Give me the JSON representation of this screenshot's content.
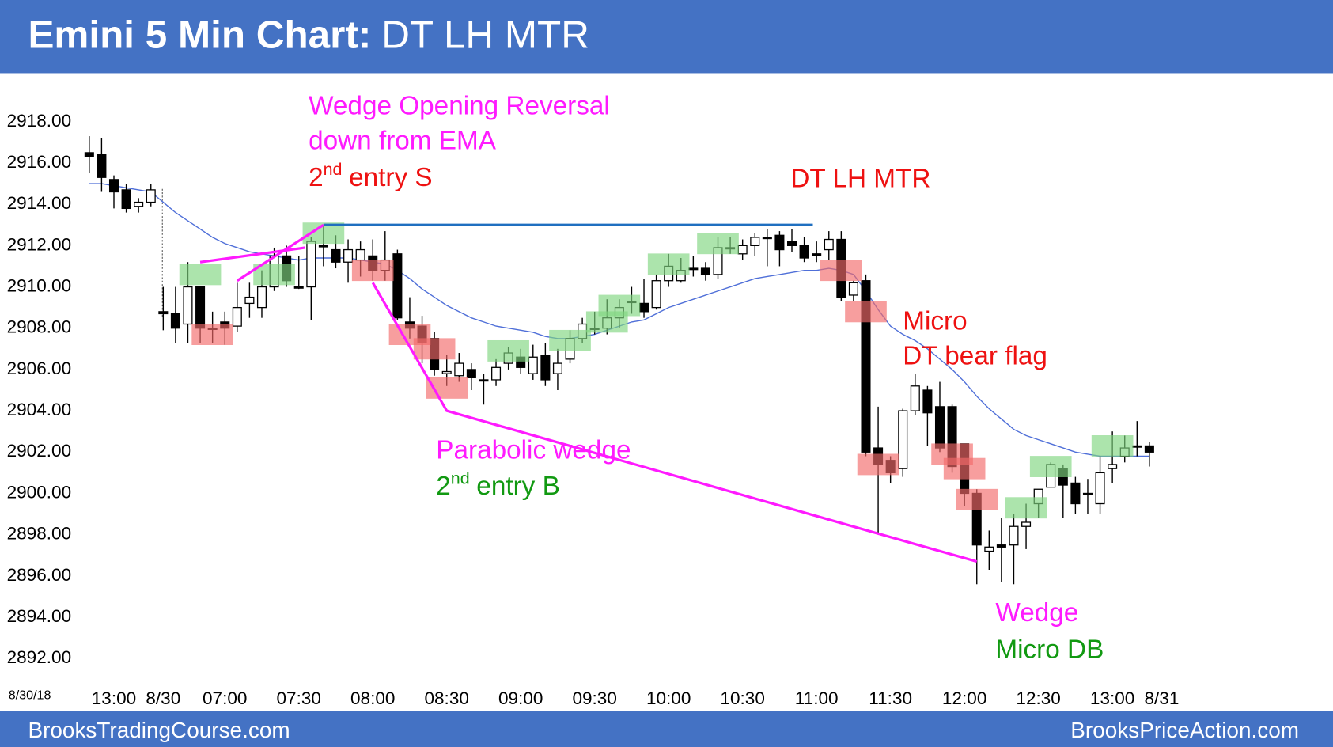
{
  "title_bold": "Emini 5 Min Chart:",
  "title_rest": "DT LH MTR",
  "footer_left": "BrooksTradingCourse.com",
  "footer_right": "BrooksPriceAction.com",
  "date_label": "8/30/18",
  "annotations": {
    "wedge_opening": [
      "Wedge Opening Reversal",
      "down from EMA"
    ],
    "entry_s": [
      "2",
      "nd",
      "entry S"
    ],
    "dt_lh_mtr": "DT LH MTR",
    "micro": [
      "Micro",
      "DT bear flag"
    ],
    "parabolic": "Parabolic wedge",
    "entry_b": [
      "2",
      "nd",
      "entry B"
    ],
    "wedge": "Wedge",
    "micro_db": "Micro DB"
  },
  "chart_data": {
    "type": "candlestick",
    "categories": [
      null,
      null,
      "13:00",
      null,
      null,
      null,
      "8/30",
      null,
      null,
      null,
      null,
      "07:00",
      null,
      null,
      null,
      null,
      null,
      "07:30",
      null,
      null,
      null,
      null,
      null,
      "08:00",
      null,
      null,
      null,
      null,
      null,
      "08:30",
      null,
      null,
      null,
      null,
      null,
      "09:00",
      null,
      null,
      null,
      null,
      null,
      "09:30",
      null,
      null,
      null,
      null,
      null,
      "10:00",
      null,
      null,
      null,
      null,
      null,
      "10:30",
      null,
      null,
      null,
      null,
      null,
      "11:00",
      null,
      null,
      null,
      null,
      null,
      "11:30",
      null,
      null,
      null,
      null,
      null,
      "12:00",
      null,
      null,
      null,
      null,
      null,
      "12:30",
      null,
      null,
      null,
      null,
      null,
      "13:00",
      null,
      null,
      null,
      "8/31"
    ],
    "open": [
      2916.5,
      2916.4,
      2915.2,
      2914.7,
      2913.9,
      2914.1,
      2908.8,
      2908.7,
      2908.2,
      2910.0,
      2908.0,
      2908.3,
      2908.1,
      2909.2,
      2909.0,
      2910.0,
      2911.5,
      2910.0,
      2910.0,
      2912.0,
      2911.8,
      2911.2,
      2911.3,
      2911.5,
      2910.8,
      2911.6,
      2908.3,
      2908.1,
      2907.5,
      2905.8,
      2905.7,
      2906.0,
      2905.5,
      2905.5,
      2906.3,
      2906.6,
      2905.8,
      2906.7,
      2905.8,
      2906.5,
      2907.5,
      2908.0,
      2908.0,
      2908.5,
      2909.3,
      2909.2,
      2909.0,
      2910.3,
      2910.3,
      2910.9,
      2910.9,
      2910.6,
      2911.9,
      2911.6,
      2912.0,
      2912.4,
      2912.5,
      2912.2,
      2912.0,
      2911.6,
      2911.8,
      2912.3,
      2909.6,
      2910.3,
      2902.2,
      2901.6,
      2901.2,
      2904.0,
      2905.0,
      2904.2,
      2904.2,
      2902.4,
      2900.0,
      2897.2,
      2897.5,
      2897.5,
      2898.4,
      2899.5,
      2900.3,
      2901.2,
      2900.5,
      2900.0,
      2899.5,
      2901.2,
      2901.8,
      2902.3,
      2902.3,
      null
    ],
    "high": [
      2917.3,
      2917.2,
      2915.4,
      2915.0,
      2914.3,
      2915.0,
      2910.0,
      2910.0,
      2911.2,
      2910.0,
      2908.8,
      2908.8,
      2910.2,
      2910.2,
      2910.8,
      2911.9,
      2912.0,
      2911.5,
      2912.4,
      2913.0,
      2912.5,
      2912.3,
      2912.2,
      2912.3,
      2912.7,
      2911.8,
      2909.5,
      2908.6,
      2907.8,
      2906.7,
      2906.8,
      2906.3,
      2905.8,
      2906.5,
      2907.1,
      2907.0,
      2907.2,
      2907.3,
      2907.0,
      2907.9,
      2908.5,
      2908.8,
      2909.4,
      2909.4,
      2910.0,
      2910.4,
      2910.6,
      2911.6,
      2911.4,
      2911.5,
      2911.2,
      2912.4,
      2912.4,
      2912.3,
      2912.6,
      2912.8,
      2912.7,
      2912.8,
      2912.4,
      2912.2,
      2912.7,
      2912.7,
      2910.3,
      2910.6,
      2904.2,
      2901.8,
      2904.1,
      2905.8,
      2905.2,
      2905.4,
      2904.3,
      2902.4,
      2900.2,
      2898.2,
      2898.8,
      2899.0,
      2899.5,
      2900.2,
      2901.5,
      2901.4,
      2900.8,
      2900.7,
      2901.8,
      2903.0,
      2902.8,
      2903.5,
      2902.5,
      null
    ],
    "low": [
      2915.5,
      2914.6,
      2913.8,
      2913.6,
      2913.6,
      2913.9,
      2907.9,
      2907.3,
      2907.3,
      2907.3,
      2907.3,
      2907.2,
      2907.8,
      2908.5,
      2908.5,
      2909.8,
      2910.0,
      2909.9,
      2908.4,
      2911.0,
      2910.9,
      2910.2,
      2910.5,
      2910.3,
      2910.3,
      2908.4,
      2907.5,
      2906.3,
      2905.7,
      2905.2,
      2905.4,
      2905.0,
      2904.3,
      2905.2,
      2906.0,
      2905.8,
      2905.5,
      2905.2,
      2905.0,
      2906.3,
      2907.3,
      2907.7,
      2907.7,
      2908.0,
      2908.7,
      2908.5,
      2908.9,
      2910.0,
      2910.2,
      2910.5,
      2910.3,
      2910.4,
      2911.6,
      2911.3,
      2911.5,
      2911.0,
      2911.0,
      2911.7,
      2911.2,
      2911.2,
      2911.3,
      2909.3,
      2909.3,
      2901.8,
      2898.1,
      2900.5,
      2900.8,
      2903.8,
      2902.3,
      2902.0,
      2901.0,
      2899.4,
      2895.6,
      2896.3,
      2895.7,
      2895.6,
      2897.3,
      2898.8,
      2900.3,
      2898.8,
      2899.0,
      2899.0,
      2899.0,
      2900.5,
      2901.5,
      2901.8,
      2901.3,
      null
    ],
    "close": [
      2916.3,
      2915.3,
      2914.6,
      2913.8,
      2914.1,
      2914.7,
      2908.7,
      2908.0,
      2910.0,
      2908.0,
      2908.0,
      2908.0,
      2909.0,
      2909.5,
      2910.0,
      2911.5,
      2910.3,
      2910.0,
      2912.2,
      2912.0,
      2911.2,
      2911.8,
      2911.8,
      2910.8,
      2911.3,
      2908.5,
      2908.0,
      2907.3,
      2906.0,
      2905.9,
      2906.3,
      2905.6,
      2905.5,
      2906.1,
      2906.8,
      2906.1,
      2906.6,
      2905.5,
      2906.3,
      2907.5,
      2908.2,
      2908.0,
      2908.5,
      2909.0,
      2909.3,
      2908.8,
      2910.3,
      2911.0,
      2910.8,
      2910.9,
      2910.6,
      2911.9,
      2911.9,
      2912.0,
      2912.4,
      2912.4,
      2911.8,
      2912.0,
      2911.4,
      2911.6,
      2912.3,
      2909.5,
      2910.2,
      2902.0,
      2901.4,
      2901.0,
      2904.0,
      2905.2,
      2903.9,
      2902.2,
      2901.3,
      2900.0,
      2897.5,
      2897.4,
      2897.4,
      2898.4,
      2898.6,
      2900.2,
      2901.4,
      2900.4,
      2899.5,
      2900.0,
      2901.0,
      2901.4,
      2902.2,
      2902.3,
      2902.0,
      null
    ],
    "ema": {
      "color": "#4f6fd8",
      "values": [
        2915.0,
        2915.0,
        2914.9,
        2914.8,
        2914.7,
        2914.6,
        2914.1,
        2913.6,
        2913.2,
        2912.8,
        2912.4,
        2912.1,
        2911.9,
        2911.7,
        2911.6,
        2911.5,
        2911.4,
        2911.3,
        2911.4,
        2911.4,
        2911.4,
        2911.4,
        2911.3,
        2911.2,
        2911.1,
        2910.8,
        2910.4,
        2909.9,
        2909.5,
        2909.1,
        2908.8,
        2908.5,
        2908.3,
        2908.1,
        2908.0,
        2907.9,
        2907.8,
        2907.6,
        2907.5,
        2907.5,
        2907.6,
        2907.7,
        2907.9,
        2908.1,
        2908.3,
        2908.4,
        2908.7,
        2909.0,
        2909.2,
        2909.4,
        2909.6,
        2909.8,
        2910.0,
        2910.2,
        2910.4,
        2910.5,
        2910.6,
        2910.7,
        2910.8,
        2910.8,
        2910.9,
        2910.8,
        2910.6,
        2909.8,
        2908.9,
        2908.1,
        2907.7,
        2907.4,
        2907.0,
        2906.5,
        2906.0,
        2905.4,
        2904.7,
        2904.1,
        2903.6,
        2903.1,
        2902.8,
        2902.6,
        2902.4,
        2902.2,
        2902.0,
        2901.9,
        2901.8,
        2901.8,
        2901.8,
        2901.8,
        2901.8,
        null
      ]
    },
    "buy_boxes": {
      "color": "#7fd67f",
      "items": [
        {
          "bar": 9,
          "price": 2910.6
        },
        {
          "bar": 15,
          "price": 2910.6
        },
        {
          "bar": 19,
          "price": 2912.6
        },
        {
          "bar": 34,
          "price": 2906.9
        },
        {
          "bar": 39,
          "price": 2907.4
        },
        {
          "bar": 42,
          "price": 2908.3
        },
        {
          "bar": 43,
          "price": 2909.1
        },
        {
          "bar": 47,
          "price": 2911.1
        },
        {
          "bar": 51,
          "price": 2912.1
        },
        {
          "bar": 76,
          "price": 2899.3
        },
        {
          "bar": 78,
          "price": 2901.3
        },
        {
          "bar": 83,
          "price": 2902.3
        }
      ]
    },
    "sell_boxes": {
      "color": "#f26a6a",
      "items": [
        {
          "bar": 10,
          "price": 2907.7
        },
        {
          "bar": 23,
          "price": 2910.8
        },
        {
          "bar": 26,
          "price": 2907.7
        },
        {
          "bar": 28,
          "price": 2907.0
        },
        {
          "bar": 29,
          "price": 2905.1
        },
        {
          "bar": 61,
          "price": 2910.8
        },
        {
          "bar": 63,
          "price": 2908.8
        },
        {
          "bar": 64,
          "price": 2901.4
        },
        {
          "bar": 70,
          "price": 2901.9
        },
        {
          "bar": 71,
          "price": 2901.2
        },
        {
          "bar": 72,
          "price": 2899.7
        }
      ]
    },
    "lines": [
      {
        "color": "#ff1aff",
        "points": [
          [
            9,
            2911.2
          ],
          [
            17.5,
            2911.9
          ]
        ]
      },
      {
        "color": "#ff1aff",
        "points": [
          [
            12,
            2910.3
          ],
          [
            19,
            2913.0
          ]
        ]
      },
      {
        "color": "#1f6fc0",
        "points": [
          [
            19,
            2913.0
          ],
          [
            58.7,
            2913.0
          ]
        ]
      },
      {
        "color": "#ff1aff",
        "points": [
          [
            23,
            2910.2
          ],
          [
            29,
            2904.0
          ],
          [
            64,
            2898.05
          ],
          [
            72,
            2896.7
          ]
        ]
      }
    ],
    "ylim": [
      2891,
      2920
    ],
    "yticks": [
      {
        "value": 2892,
        "label": "2892.00"
      },
      {
        "value": 2894,
        "label": "2894.00"
      },
      {
        "value": 2896,
        "label": "2896.00"
      },
      {
        "value": 2898,
        "label": "2898.00"
      },
      {
        "value": 2900,
        "label": "2900.00"
      },
      {
        "value": 2902,
        "label": "2902.00"
      },
      {
        "value": 2904,
        "label": "2904.00"
      },
      {
        "value": 2906,
        "label": "2906.00"
      },
      {
        "value": 2908,
        "label": "2908.00"
      },
      {
        "value": 2910,
        "label": "2910.00"
      },
      {
        "value": 2912,
        "label": "2912.00"
      },
      {
        "value": 2914,
        "label": "2914.00"
      },
      {
        "value": 2916,
        "label": "2916.00"
      },
      {
        "value": 2918,
        "label": "2918.00"
      }
    ],
    "grid": false
  }
}
